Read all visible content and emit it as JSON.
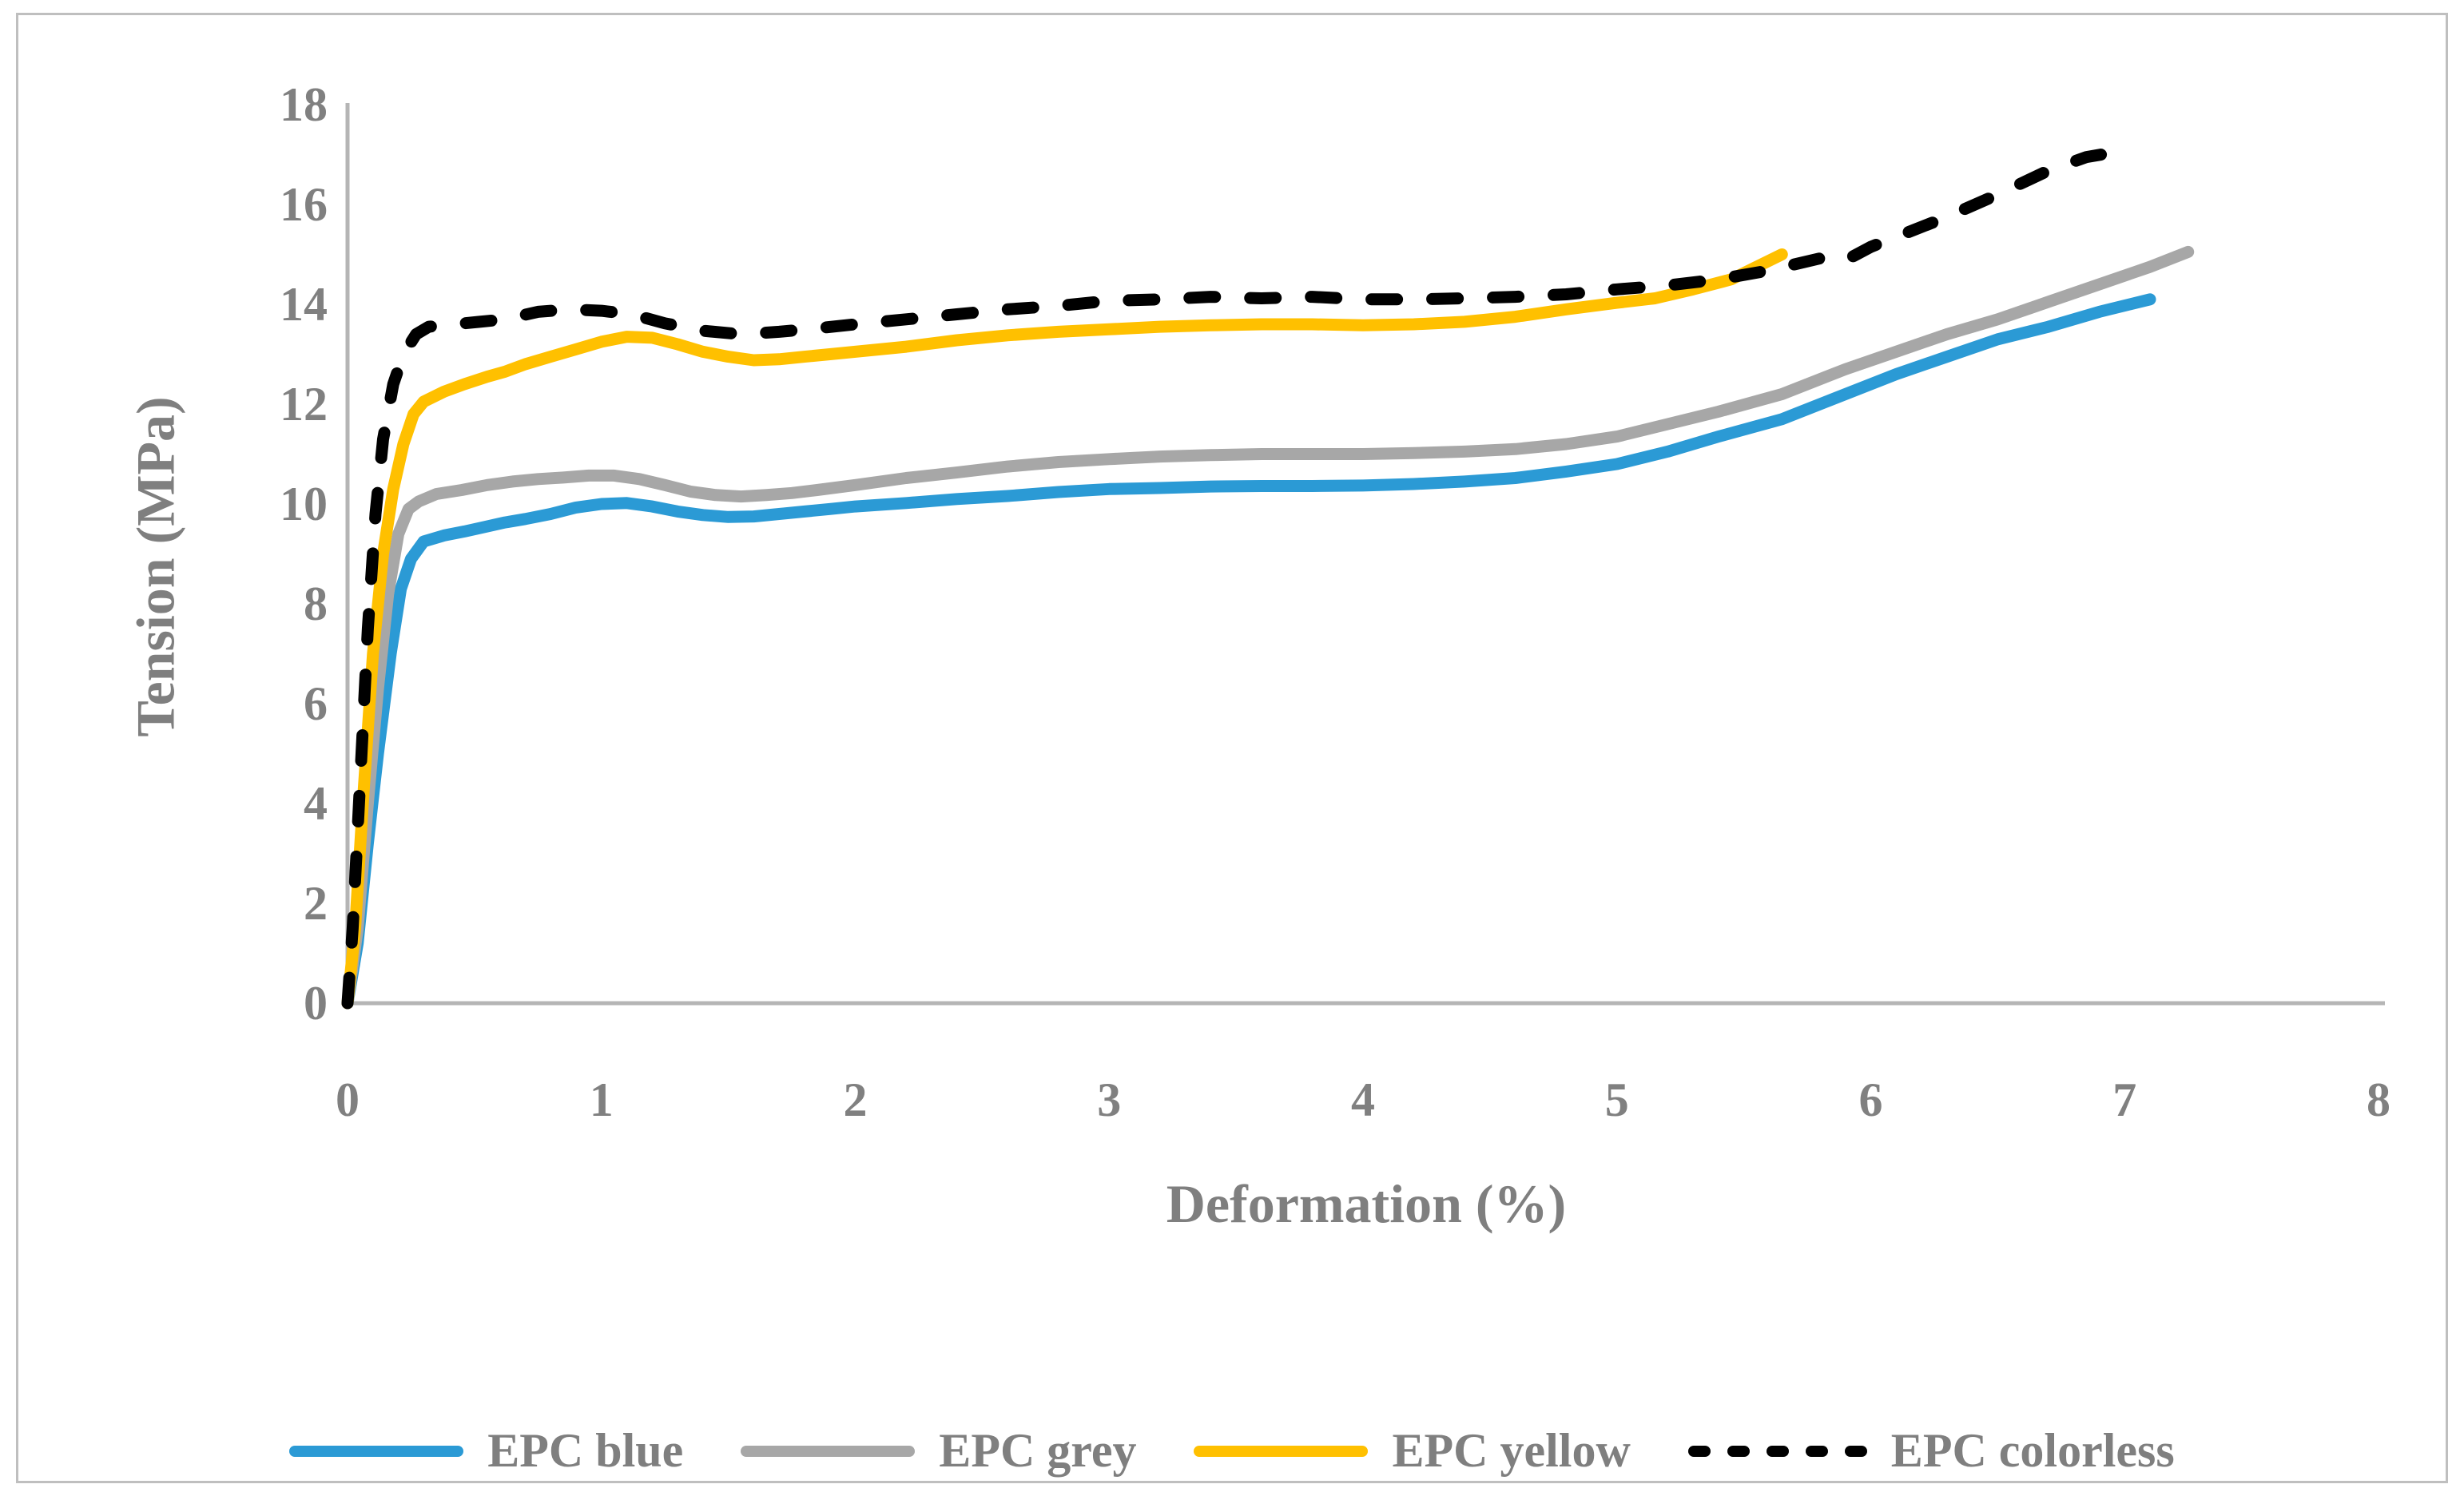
{
  "figure": {
    "background": "#FFFFFF",
    "border_color": "#BFBFBF"
  },
  "chart_data": {
    "type": "line",
    "title": "",
    "xlabel": "Deformation (%)",
    "ylabel": "Tension (MPa)",
    "xlim": [
      0,
      8
    ],
    "ylim": [
      0,
      18
    ],
    "x_ticks": [
      0,
      1,
      2,
      3,
      4,
      5,
      6,
      7,
      8
    ],
    "y_ticks": [
      0,
      2,
      4,
      6,
      8,
      10,
      12,
      14,
      16,
      18
    ],
    "grid": false,
    "legend_position": "bottom",
    "axis_color": "#B5B5B5",
    "tick_label_color": "#808080",
    "series": [
      {
        "name": "EPC blue",
        "color": "#2B9AD5",
        "style": "solid",
        "points": [
          [
            0,
            0
          ],
          [
            0.04,
            1.2
          ],
          [
            0.08,
            3.2
          ],
          [
            0.12,
            5.0
          ],
          [
            0.17,
            7.0
          ],
          [
            0.21,
            8.3
          ],
          [
            0.25,
            8.9
          ],
          [
            0.3,
            9.25
          ],
          [
            0.38,
            9.37
          ],
          [
            0.46,
            9.45
          ],
          [
            0.55,
            9.55
          ],
          [
            0.62,
            9.63
          ],
          [
            0.7,
            9.7
          ],
          [
            0.8,
            9.8
          ],
          [
            0.9,
            9.93
          ],
          [
            1.0,
            10.0
          ],
          [
            1.1,
            10.02
          ],
          [
            1.2,
            9.95
          ],
          [
            1.3,
            9.85
          ],
          [
            1.4,
            9.78
          ],
          [
            1.5,
            9.74
          ],
          [
            1.6,
            9.75
          ],
          [
            1.7,
            9.8
          ],
          [
            1.8,
            9.85
          ],
          [
            1.9,
            9.9
          ],
          [
            2.0,
            9.95
          ],
          [
            2.2,
            10.02
          ],
          [
            2.4,
            10.1
          ],
          [
            2.6,
            10.16
          ],
          [
            2.8,
            10.24
          ],
          [
            3.0,
            10.3
          ],
          [
            3.2,
            10.32
          ],
          [
            3.4,
            10.35
          ],
          [
            3.6,
            10.36
          ],
          [
            3.8,
            10.36
          ],
          [
            4.0,
            10.37
          ],
          [
            4.2,
            10.4
          ],
          [
            4.4,
            10.45
          ],
          [
            4.6,
            10.52
          ],
          [
            4.8,
            10.65
          ],
          [
            5.0,
            10.8
          ],
          [
            5.2,
            11.05
          ],
          [
            5.4,
            11.35
          ],
          [
            5.65,
            11.7
          ],
          [
            5.9,
            12.2
          ],
          [
            6.1,
            12.6
          ],
          [
            6.3,
            12.95
          ],
          [
            6.5,
            13.3
          ],
          [
            6.7,
            13.55
          ],
          [
            6.9,
            13.85
          ],
          [
            7.1,
            14.1
          ]
        ]
      },
      {
        "name": "EPC grey",
        "color": "#A7A7A7",
        "style": "solid",
        "points": [
          [
            0,
            0
          ],
          [
            0.04,
            1.5
          ],
          [
            0.08,
            4.0
          ],
          [
            0.12,
            6.3
          ],
          [
            0.16,
            8.2
          ],
          [
            0.2,
            9.4
          ],
          [
            0.24,
            9.9
          ],
          [
            0.28,
            10.05
          ],
          [
            0.35,
            10.2
          ],
          [
            0.45,
            10.28
          ],
          [
            0.55,
            10.38
          ],
          [
            0.65,
            10.45
          ],
          [
            0.75,
            10.5
          ],
          [
            0.85,
            10.53
          ],
          [
            0.95,
            10.57
          ],
          [
            1.05,
            10.57
          ],
          [
            1.15,
            10.5
          ],
          [
            1.25,
            10.38
          ],
          [
            1.35,
            10.25
          ],
          [
            1.45,
            10.18
          ],
          [
            1.55,
            10.15
          ],
          [
            1.65,
            10.18
          ],
          [
            1.75,
            10.22
          ],
          [
            1.85,
            10.28
          ],
          [
            2.0,
            10.38
          ],
          [
            2.2,
            10.52
          ],
          [
            2.4,
            10.63
          ],
          [
            2.6,
            10.75
          ],
          [
            2.8,
            10.84
          ],
          [
            3.0,
            10.9
          ],
          [
            3.2,
            10.95
          ],
          [
            3.4,
            10.98
          ],
          [
            3.6,
            11.0
          ],
          [
            3.8,
            11.0
          ],
          [
            4.0,
            11.0
          ],
          [
            4.2,
            11.02
          ],
          [
            4.4,
            11.05
          ],
          [
            4.6,
            11.1
          ],
          [
            4.8,
            11.2
          ],
          [
            5.0,
            11.35
          ],
          [
            5.2,
            11.6
          ],
          [
            5.4,
            11.85
          ],
          [
            5.65,
            12.2
          ],
          [
            5.9,
            12.7
          ],
          [
            6.1,
            13.05
          ],
          [
            6.3,
            13.4
          ],
          [
            6.5,
            13.7
          ],
          [
            6.7,
            14.05
          ],
          [
            6.9,
            14.4
          ],
          [
            7.1,
            14.75
          ],
          [
            7.25,
            15.05
          ]
        ]
      },
      {
        "name": "EPC yellow",
        "color": "#FFC000",
        "style": "solid",
        "points": [
          [
            0,
            0
          ],
          [
            0.03,
            1.5
          ],
          [
            0.06,
            4.0
          ],
          [
            0.1,
            7.0
          ],
          [
            0.14,
            9.0
          ],
          [
            0.18,
            10.3
          ],
          [
            0.22,
            11.2
          ],
          [
            0.26,
            11.8
          ],
          [
            0.3,
            12.05
          ],
          [
            0.38,
            12.25
          ],
          [
            0.46,
            12.4
          ],
          [
            0.55,
            12.55
          ],
          [
            0.62,
            12.65
          ],
          [
            0.7,
            12.8
          ],
          [
            0.8,
            12.95
          ],
          [
            0.9,
            13.1
          ],
          [
            1.0,
            13.25
          ],
          [
            1.1,
            13.35
          ],
          [
            1.2,
            13.33
          ],
          [
            1.3,
            13.2
          ],
          [
            1.4,
            13.05
          ],
          [
            1.5,
            12.95
          ],
          [
            1.6,
            12.88
          ],
          [
            1.7,
            12.9
          ],
          [
            1.8,
            12.95
          ],
          [
            1.9,
            13.0
          ],
          [
            2.0,
            13.05
          ],
          [
            2.2,
            13.15
          ],
          [
            2.4,
            13.28
          ],
          [
            2.6,
            13.38
          ],
          [
            2.8,
            13.45
          ],
          [
            3.0,
            13.5
          ],
          [
            3.2,
            13.55
          ],
          [
            3.4,
            13.58
          ],
          [
            3.6,
            13.6
          ],
          [
            3.8,
            13.6
          ],
          [
            4.0,
            13.58
          ],
          [
            4.2,
            13.6
          ],
          [
            4.4,
            13.65
          ],
          [
            4.6,
            13.75
          ],
          [
            4.8,
            13.9
          ],
          [
            5.0,
            14.03
          ],
          [
            5.15,
            14.12
          ],
          [
            5.3,
            14.3
          ],
          [
            5.45,
            14.5
          ],
          [
            5.55,
            14.75
          ],
          [
            5.65,
            15.0
          ]
        ]
      },
      {
        "name": "EPC colorless",
        "color": "#000000",
        "style": "dashed",
        "points": [
          [
            0,
            0
          ],
          [
            0.02,
            1.5
          ],
          [
            0.05,
            4.5
          ],
          [
            0.08,
            7.5
          ],
          [
            0.11,
            9.8
          ],
          [
            0.14,
            11.3
          ],
          [
            0.18,
            12.4
          ],
          [
            0.22,
            13.0
          ],
          [
            0.27,
            13.4
          ],
          [
            0.32,
            13.55
          ],
          [
            0.42,
            13.6
          ],
          [
            0.52,
            13.65
          ],
          [
            0.62,
            13.7
          ],
          [
            0.75,
            13.85
          ],
          [
            0.88,
            13.9
          ],
          [
            1.0,
            13.87
          ],
          [
            1.12,
            13.8
          ],
          [
            1.25,
            13.62
          ],
          [
            1.4,
            13.47
          ],
          [
            1.55,
            13.4
          ],
          [
            1.7,
            13.45
          ],
          [
            1.85,
            13.52
          ],
          [
            2.0,
            13.6
          ],
          [
            2.2,
            13.7
          ],
          [
            2.4,
            13.8
          ],
          [
            2.6,
            13.9
          ],
          [
            2.8,
            13.97
          ],
          [
            3.0,
            14.07
          ],
          [
            3.2,
            14.1
          ],
          [
            3.4,
            14.15
          ],
          [
            3.6,
            14.12
          ],
          [
            3.8,
            14.15
          ],
          [
            4.0,
            14.1
          ],
          [
            4.2,
            14.1
          ],
          [
            4.4,
            14.12
          ],
          [
            4.6,
            14.15
          ],
          [
            4.8,
            14.2
          ],
          [
            5.0,
            14.3
          ],
          [
            5.2,
            14.38
          ],
          [
            5.4,
            14.5
          ],
          [
            5.6,
            14.68
          ],
          [
            5.8,
            14.92
          ],
          [
            5.9,
            14.88
          ],
          [
            6.0,
            15.15
          ],
          [
            6.15,
            15.45
          ],
          [
            6.3,
            15.75
          ],
          [
            6.5,
            16.2
          ],
          [
            6.7,
            16.68
          ],
          [
            6.85,
            16.95
          ],
          [
            6.93,
            17.02
          ]
        ]
      }
    ]
  }
}
